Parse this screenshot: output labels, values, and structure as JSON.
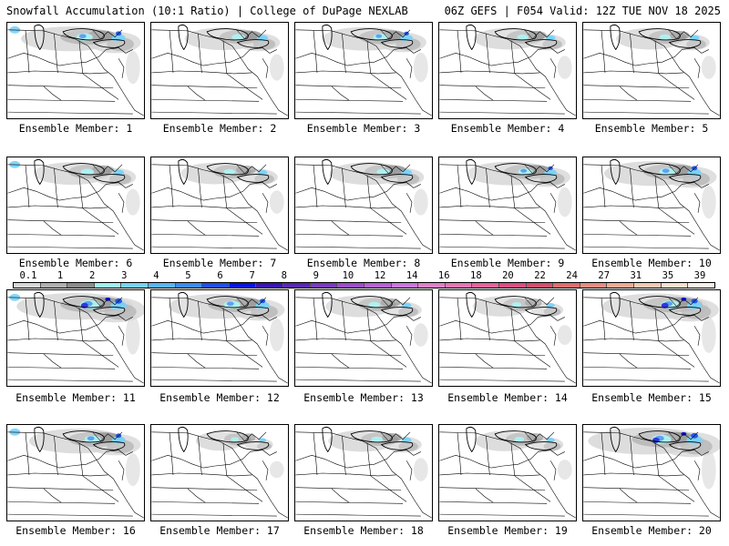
{
  "header": {
    "left_title": "Snowfall Accumulation (10:1 Ratio) | College of DuPage NEXLAB",
    "right_title": "06Z GEFS | F054 Valid: 12Z TUE NOV 18 2025"
  },
  "legend": {
    "ticks": [
      "0.1",
      "1",
      "2",
      "3",
      "4",
      "5",
      "6",
      "7",
      "8",
      "9",
      "10",
      "12",
      "14",
      "16",
      "18",
      "20",
      "22",
      "24",
      "27",
      "31",
      "35",
      "39"
    ],
    "colors": [
      "#d7d7d7",
      "#b0b0b0",
      "#8c8c8c",
      "#a0f0f0",
      "#78d2f8",
      "#5ab4f5",
      "#3c8cf0",
      "#2050e6",
      "#0a14dc",
      "#3c14b4",
      "#5a28b4",
      "#7a3cbe",
      "#9a50c8",
      "#b464d2",
      "#c878dc",
      "#dc82c8",
      "#e278b4",
      "#e2649a",
      "#d85082",
      "#d2506e",
      "#dc6e6e",
      "#e68c82",
      "#eeaa96",
      "#f4c8b4",
      "#f8e0d0",
      "#fcf0e6"
    ]
  },
  "members": [
    {
      "label": "Ensemble Member: 1",
      "snow": 0.8
    },
    {
      "label": "Ensemble Member: 2",
      "snow": 0.6
    },
    {
      "label": "Ensemble Member: 3",
      "snow": 0.7
    },
    {
      "label": "Ensemble Member: 4",
      "snow": 0.5
    },
    {
      "label": "Ensemble Member: 5",
      "snow": 0.5
    },
    {
      "label": "Ensemble Member: 6",
      "snow": 0.6
    },
    {
      "label": "Ensemble Member: 7",
      "snow": 0.5
    },
    {
      "label": "Ensemble Member: 8",
      "snow": 0.6
    },
    {
      "label": "Ensemble Member: 9",
      "snow": 0.7
    },
    {
      "label": "Ensemble Member: 10",
      "snow": 0.8
    },
    {
      "label": "Ensemble Member: 11",
      "snow": 1.0
    },
    {
      "label": "Ensemble Member: 12",
      "snow": 0.8
    },
    {
      "label": "Ensemble Member: 13",
      "snow": 0.5
    },
    {
      "label": "Ensemble Member: 14",
      "snow": 0.4
    },
    {
      "label": "Ensemble Member: 15",
      "snow": 0.9
    },
    {
      "label": "Ensemble Member: 16",
      "snow": 0.8
    },
    {
      "label": "Ensemble Member: 17",
      "snow": 0.3
    },
    {
      "label": "Ensemble Member: 18",
      "snow": 0.5
    },
    {
      "label": "Ensemble Member: 19",
      "snow": 0.4
    },
    {
      "label": "Ensemble Member: 20",
      "snow": 1.0
    }
  ]
}
